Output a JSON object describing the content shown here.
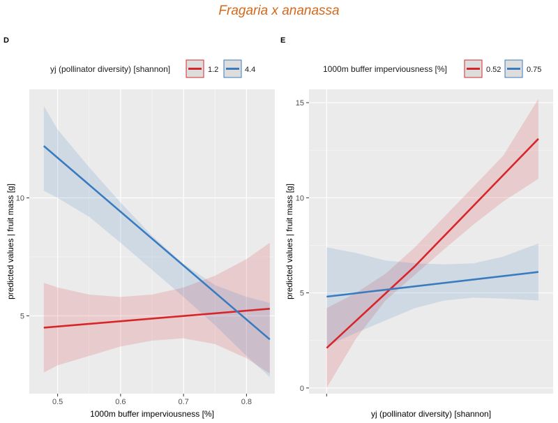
{
  "title": "Fragaria x ananassa",
  "colors": {
    "red": "#d7262b",
    "blue": "#3a7bbf",
    "panel_bg": "#ebebeb",
    "grid": "#ffffff"
  },
  "chart_data": [
    {
      "tag": "D",
      "type": "line",
      "legend_title": "yj (pollinator diversity) [shannon]",
      "legend_position": "top",
      "xlabel": "1000m buffer imperviousness [%]",
      "ylabel": "predicted values | fruit mass [g]",
      "xlim": [
        0.455,
        0.845
      ],
      "ylim": [
        1.7,
        14.6
      ],
      "x_ticks": [
        "0.5",
        "0.6",
        "0.7",
        "0.8"
      ],
      "y_ticks": [
        "5",
        "10"
      ],
      "grid": true,
      "series": [
        {
          "name": "1.2",
          "color": "#d7262b",
          "line": [
            [
              0.478,
              4.5
            ],
            [
              0.837,
              5.3
            ]
          ],
          "upper": [
            [
              0.478,
              6.4
            ],
            [
              0.5,
              6.2
            ],
            [
              0.55,
              5.9
            ],
            [
              0.6,
              5.8
            ],
            [
              0.65,
              5.9
            ],
            [
              0.7,
              6.2
            ],
            [
              0.75,
              6.7
            ],
            [
              0.8,
              7.4
            ],
            [
              0.837,
              8.1
            ]
          ],
          "lower": [
            [
              0.478,
              2.6
            ],
            [
              0.5,
              2.9
            ],
            [
              0.55,
              3.3
            ],
            [
              0.6,
              3.7
            ],
            [
              0.65,
              3.95
            ],
            [
              0.7,
              4.05
            ],
            [
              0.75,
              3.8
            ],
            [
              0.8,
              3.2
            ],
            [
              0.837,
              2.55
            ]
          ]
        },
        {
          "name": "4.4",
          "color": "#3a7bbf",
          "line": [
            [
              0.478,
              12.2
            ],
            [
              0.837,
              4.0
            ]
          ],
          "upper": [
            [
              0.478,
              13.9
            ],
            [
              0.5,
              12.9
            ],
            [
              0.55,
              11.3
            ],
            [
              0.6,
              9.8
            ],
            [
              0.65,
              8.4
            ],
            [
              0.7,
              7.2
            ],
            [
              0.75,
              6.3
            ],
            [
              0.8,
              5.8
            ],
            [
              0.837,
              5.55
            ]
          ],
          "lower": [
            [
              0.478,
              10.3
            ],
            [
              0.5,
              10.0
            ],
            [
              0.55,
              9.2
            ],
            [
              0.6,
              8.1
            ],
            [
              0.65,
              6.95
            ],
            [
              0.7,
              5.8
            ],
            [
              0.75,
              4.6
            ],
            [
              0.8,
              3.3
            ],
            [
              0.837,
              2.4
            ]
          ]
        }
      ]
    },
    {
      "tag": "E",
      "type": "line",
      "legend_title": "1000m buffer imperviousness [%]",
      "legend_position": "top",
      "xlabel": "yj (pollinator diversity) [shannon]",
      "ylabel": "predicted values | fruit mass [g]",
      "xlim": [
        0.7,
        4.85
      ],
      "ylim": [
        -0.3,
        15.7
      ],
      "x_ticks": [
        ""
      ],
      "x_tick_values": [
        1
      ],
      "y_ticks": [
        "0",
        "5",
        "10",
        "15"
      ],
      "grid": true,
      "series": [
        {
          "name": "0.52",
          "color": "#d7262b",
          "line": [
            [
              1.0,
              2.1
            ],
            [
              2.5,
              6.4
            ],
            [
              4.6,
              13.1
            ]
          ],
          "upper": [
            [
              1.0,
              4.2
            ],
            [
              1.5,
              5.0
            ],
            [
              2.0,
              6.0
            ],
            [
              2.5,
              7.4
            ],
            [
              3.0,
              9.0
            ],
            [
              3.5,
              10.6
            ],
            [
              4.0,
              12.2
            ],
            [
              4.6,
              15.2
            ]
          ],
          "lower": [
            [
              1.0,
              0.0
            ],
            [
              1.5,
              2.6
            ],
            [
              2.0,
              4.6
            ],
            [
              2.5,
              5.95
            ],
            [
              3.0,
              7.3
            ],
            [
              3.5,
              8.6
            ],
            [
              4.0,
              9.8
            ],
            [
              4.6,
              11.0
            ]
          ]
        },
        {
          "name": "0.75",
          "color": "#3a7bbf",
          "line": [
            [
              1.0,
              4.8
            ],
            [
              4.6,
              6.1
            ]
          ],
          "upper": [
            [
              1.0,
              7.4
            ],
            [
              1.5,
              7.1
            ],
            [
              2.0,
              6.7
            ],
            [
              2.5,
              6.55
            ],
            [
              3.0,
              6.5
            ],
            [
              3.5,
              6.55
            ],
            [
              4.0,
              6.9
            ],
            [
              4.6,
              7.6
            ]
          ],
          "lower": [
            [
              1.0,
              2.2
            ],
            [
              1.5,
              2.9
            ],
            [
              2.0,
              3.55
            ],
            [
              2.5,
              4.2
            ],
            [
              3.0,
              4.6
            ],
            [
              3.5,
              4.75
            ],
            [
              4.0,
              4.7
            ],
            [
              4.6,
              4.6
            ]
          ]
        }
      ]
    }
  ]
}
